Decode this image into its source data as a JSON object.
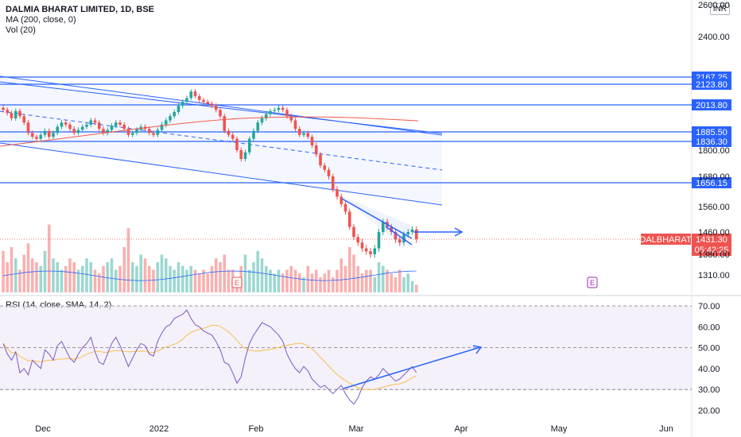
{
  "header": {
    "title": "DALMIA BHARAT LIMITED, 1D, BSE",
    "ma_label": "MA (200, close, 0)",
    "vol_label": "Vol (20)",
    "currency": "INR"
  },
  "rsi_legend": "RSI (14, close, SMA, 14, 2)",
  "price_axis": {
    "ticks": [
      "2400.00",
      "1800.00",
      "1680.00",
      "1560.00",
      "1460.00",
      "1380.00",
      "1310.00"
    ],
    "top_label": "2600.00"
  },
  "levels": [
    {
      "label": "2167.25",
      "value": 2167.25
    },
    {
      "label": "2123.80",
      "value": 2123.8
    },
    {
      "label": "2013.80",
      "value": 2013.8
    },
    {
      "label": "1885.50",
      "value": 1885.5
    },
    {
      "label": "1836.30",
      "value": 1836.3
    },
    {
      "label": "1656.15",
      "value": 1656.15
    }
  ],
  "last_price": {
    "symbol": "DALBHARAT",
    "price": "1431.30",
    "countdown": "05:42:25",
    "value": 1431.3
  },
  "rsi_axis": {
    "ticks": [
      "70.00",
      "60.00",
      "50.00",
      "40.00",
      "30.00",
      "20.00"
    ]
  },
  "time_axis": [
    "Dec",
    "2022",
    "Feb",
    "Mar",
    "Apr",
    "May",
    "Jun"
  ],
  "event_markers": [
    "E",
    "E"
  ],
  "colors": {
    "up": "#26a69a",
    "down": "#ef5350",
    "level": "#2962ff",
    "ma": "#f05b4b",
    "rsi": "#7e57c2",
    "rsi_ma": "#f7c04a",
    "vol_ma": "#2962ff"
  },
  "chart_data": {
    "type": "candlestick",
    "title": "DALMIA BHARAT LIMITED, 1D, BSE",
    "price_range": [
      1270,
      2600
    ],
    "closes": [
      1990,
      1975,
      1950,
      1985,
      1960,
      1930,
      1880,
      1860,
      1850,
      1870,
      1890,
      1860,
      1880,
      1910,
      1930,
      1920,
      1900,
      1880,
      1895,
      1910,
      1920,
      1940,
      1930,
      1900,
      1880,
      1895,
      1915,
      1930,
      1920,
      1900,
      1870,
      1880,
      1895,
      1910,
      1900,
      1880,
      1870,
      1895,
      1920,
      1940,
      1960,
      1980,
      2010,
      2030,
      2050,
      2085,
      2060,
      2040,
      2030,
      2020,
      2010,
      1990,
      1960,
      1890,
      1870,
      1850,
      1800,
      1760,
      1790,
      1850,
      1890,
      1930,
      1950,
      1970,
      1985,
      1990,
      2000,
      1990,
      1960,
      1940,
      1900,
      1870,
      1880,
      1860,
      1820,
      1780,
      1730,
      1710,
      1680,
      1630,
      1600,
      1570,
      1540,
      1480,
      1440,
      1420,
      1400,
      1390,
      1380,
      1400,
      1460,
      1500,
      1480,
      1460,
      1430,
      1420,
      1450,
      1460,
      1470,
      1431
    ],
    "volume": [
      0.55,
      0.4,
      0.6,
      0.45,
      0.3,
      0.5,
      0.65,
      0.45,
      0.4,
      0.35,
      0.55,
      0.9,
      0.45,
      0.4,
      0.3,
      0.35,
      0.45,
      0.4,
      0.3,
      0.35,
      0.45,
      0.4,
      0.3,
      0.25,
      0.35,
      0.4,
      0.45,
      0.3,
      0.35,
      0.6,
      0.85,
      0.4,
      0.35,
      0.5,
      0.45,
      0.35,
      0.3,
      0.4,
      0.5,
      0.45,
      0.35,
      0.3,
      0.4,
      0.35,
      0.3,
      0.35,
      0.3,
      0.25,
      0.3,
      0.25,
      0.35,
      0.45,
      0.4,
      0.5,
      0.3,
      0.3,
      0.2,
      0.35,
      0.5,
      0.3,
      0.4,
      0.55,
      0.45,
      0.35,
      0.3,
      0.25,
      0.3,
      0.25,
      0.3,
      0.35,
      0.3,
      0.25,
      0.2,
      0.35,
      0.25,
      0.3,
      0.2,
      0.25,
      0.3,
      0.2,
      0.3,
      0.45,
      0.35,
      0.6,
      0.5,
      0.35,
      0.25,
      0.3,
      0.3,
      0.2,
      0.4,
      0.35,
      0.3,
      0.25,
      0.2,
      0.3,
      0.2,
      0.25,
      0.15,
      0.1
    ],
    "rsi": [
      52,
      47,
      44,
      48,
      38,
      40,
      37,
      44,
      42,
      40,
      49,
      47,
      44,
      51,
      53,
      49,
      45,
      43,
      47,
      50,
      52,
      55,
      48,
      43,
      42,
      47,
      52,
      55,
      51,
      46,
      41,
      45,
      49,
      52,
      51,
      47,
      46,
      53,
      57,
      60,
      61,
      64,
      65,
      66,
      68,
      64,
      61,
      60,
      58,
      57,
      56,
      53,
      49,
      43,
      42,
      38,
      33,
      36,
      45,
      52,
      56,
      59,
      62,
      61,
      60,
      58,
      56,
      53,
      47,
      43,
      40,
      38,
      41,
      39,
      35,
      33,
      31,
      32,
      30,
      28,
      30,
      32,
      28,
      25,
      23,
      26,
      31,
      34,
      36,
      35,
      37,
      40,
      38,
      36,
      34,
      35,
      37,
      39,
      41,
      38
    ],
    "rsi_range": [
      15,
      75
    ],
    "x_labels": [
      "Dec",
      "2022",
      "Feb",
      "Mar",
      "Apr",
      "May",
      "Jun"
    ]
  }
}
